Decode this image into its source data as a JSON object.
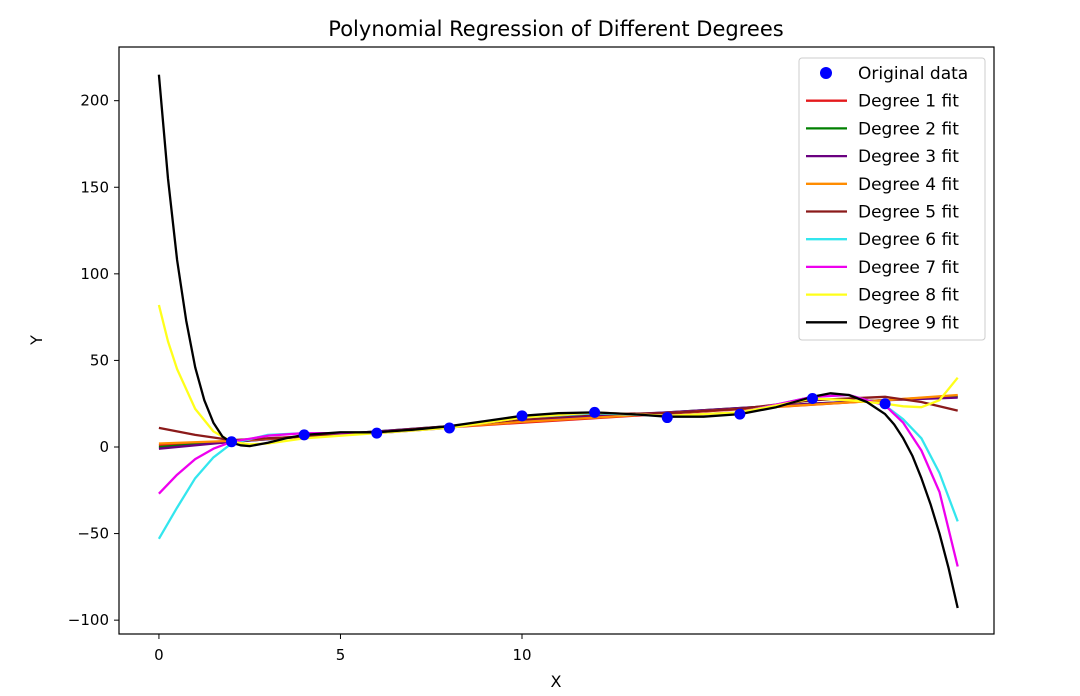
{
  "chart_data": {
    "type": "line",
    "title": "Polynomial Regression of Different Degrees",
    "xlabel": "X",
    "ylabel": "Y",
    "xlim": [
      -1.1,
      23
    ],
    "ylim": [
      -108,
      231
    ],
    "xticks": [
      0,
      5,
      10
    ],
    "xtick_labels": [
      "0",
      "5",
      "10"
    ],
    "yticks": [
      -100,
      -50,
      0,
      50,
      100,
      150,
      200
    ],
    "ytick_labels": [
      "−100",
      "−50",
      "0",
      "50",
      "100",
      "150",
      "200"
    ],
    "grid": false,
    "legend_placement": "top-right",
    "scatter": {
      "name": "Original data",
      "color": "#0000ff",
      "x": [
        2,
        4,
        6,
        8,
        10,
        12,
        14,
        16,
        18,
        20
      ],
      "y": [
        3,
        7,
        8,
        11,
        18,
        20,
        17,
        19,
        28,
        25
      ]
    },
    "series": [
      {
        "name": "Degree 1 fit",
        "color": "#e41a1c",
        "x": [
          0,
          2,
          4,
          6,
          8,
          10,
          12,
          14,
          16,
          18,
          20,
          22
        ],
        "y": [
          1,
          3.6,
          6.2,
          8.8,
          11.4,
          14,
          16.6,
          19.2,
          21.8,
          24.4,
          27,
          29.6
        ]
      },
      {
        "name": "Degree 2 fit",
        "color": "#008000",
        "x": [
          0,
          2,
          4,
          6,
          8,
          10,
          12,
          14,
          16,
          18,
          20,
          22
        ],
        "y": [
          0,
          3,
          6,
          9,
          12,
          15,
          17.5,
          20,
          22.5,
          25,
          27,
          29
        ]
      },
      {
        "name": "Degree 3 fit",
        "color": "#6a0080",
        "x": [
          0,
          2,
          4,
          6,
          8,
          10,
          12,
          14,
          16,
          18,
          20,
          22
        ],
        "y": [
          -1,
          3,
          6,
          9,
          12,
          15,
          18,
          20,
          22.5,
          25,
          27,
          28.5
        ]
      },
      {
        "name": "Degree 4 fit",
        "color": "#ff8c00",
        "x": [
          0,
          2,
          4,
          6,
          8,
          10,
          12,
          14,
          16,
          18,
          20,
          22
        ],
        "y": [
          2,
          3.5,
          6,
          8.5,
          11.5,
          14.5,
          17,
          19.5,
          22,
          24.5,
          27,
          30
        ]
      },
      {
        "name": "Degree 5 fit",
        "color": "#8b1a1a",
        "x": [
          0,
          1,
          2,
          3,
          4,
          6,
          8,
          10,
          12,
          14,
          16,
          18,
          20,
          21,
          22
        ],
        "y": [
          11,
          7,
          4,
          5,
          6,
          8.5,
          12,
          16,
          19,
          19.5,
          22,
          27,
          29,
          26,
          21
        ]
      },
      {
        "name": "Degree 6 fit",
        "color": "#33e6ee",
        "x": [
          0,
          0.5,
          1,
          1.5,
          2,
          3,
          4,
          6,
          8,
          10,
          12,
          14,
          16,
          18,
          19,
          20,
          20.5,
          21,
          21.5,
          22
        ],
        "y": [
          -53,
          -35,
          -18,
          -6,
          2,
          7,
          8,
          8,
          11,
          17,
          19.5,
          18,
          20,
          29,
          30,
          24,
          16,
          5,
          -15,
          -43
        ]
      },
      {
        "name": "Degree 7 fit",
        "color": "#ee00ee",
        "x": [
          0,
          0.5,
          1,
          1.5,
          2,
          3,
          4,
          6,
          8,
          10,
          12,
          14,
          16,
          18,
          19,
          20,
          20.5,
          21,
          21.5,
          22
        ],
        "y": [
          -27,
          -16,
          -7,
          -1,
          3,
          6.5,
          8,
          8,
          11,
          17,
          20,
          18,
          20,
          29,
          30,
          24,
          14,
          -2,
          -26,
          -69
        ]
      },
      {
        "name": "Degree 8 fit",
        "color": "#ffff1a",
        "x": [
          0,
          0.25,
          0.5,
          1,
          1.5,
          2,
          2.5,
          3,
          4,
          6,
          8,
          10,
          12,
          14,
          16,
          18,
          19,
          20,
          20.5,
          21,
          21.5,
          22
        ],
        "y": [
          82,
          61,
          45,
          22,
          9,
          3,
          1.5,
          2,
          5,
          8,
          11,
          17,
          20,
          18,
          20,
          28,
          27,
          25,
          23.5,
          23,
          27,
          40
        ]
      },
      {
        "name": "Degree 9 fit",
        "color": "#000000",
        "x": [
          0,
          0.25,
          0.5,
          0.75,
          1,
          1.25,
          1.5,
          1.75,
          2,
          2.25,
          2.5,
          3,
          3.5,
          4,
          5,
          6,
          7,
          8,
          9,
          10,
          11,
          12,
          13,
          14,
          15,
          16,
          17,
          18,
          18.5,
          19,
          19.5,
          20,
          20.25,
          20.5,
          20.75,
          21,
          21.25,
          21.5,
          21.75,
          22
        ],
        "y": [
          215,
          155,
          108,
          73,
          46,
          27,
          14,
          6,
          2.5,
          1,
          0.5,
          2.5,
          5,
          7,
          8.5,
          8.5,
          10,
          12,
          15,
          18,
          19.5,
          20,
          19,
          17.5,
          17.5,
          19,
          23,
          29,
          31,
          30,
          26,
          19,
          13,
          5,
          -5,
          -18,
          -33,
          -50,
          -70,
          -93
        ]
      }
    ]
  }
}
